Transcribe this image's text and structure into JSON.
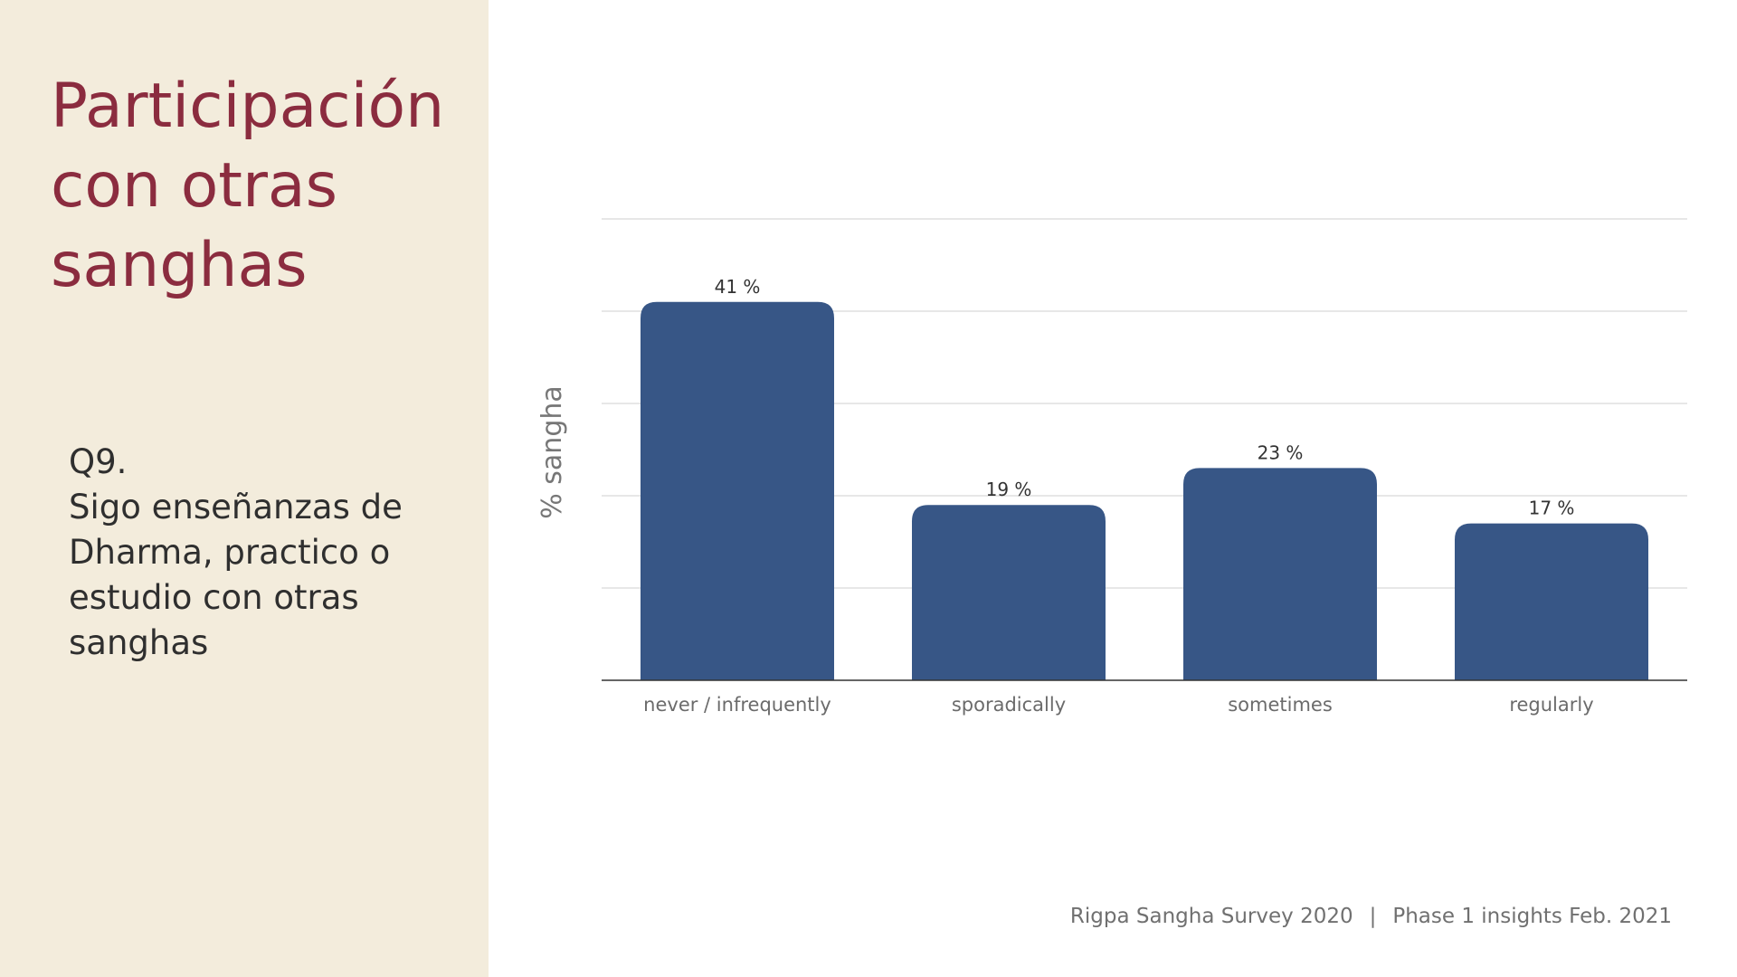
{
  "slide": {
    "title": "Participación con otras sanghas",
    "question_number": "Q9.",
    "question_text": "Sigo enseñanzas de\nDharma, practico o\nestudio con otras\nsanghas",
    "footer_left": "Rigpa Sangha Survey 2020",
    "footer_sep": "|",
    "footer_right": "Phase 1 insights Feb. 2021"
  },
  "colors": {
    "bar": "#375686",
    "title": "#8b2c3f",
    "panel": "#f3ecdc"
  },
  "chart_data": {
    "type": "bar",
    "categories": [
      "never / infrequently",
      "sporadically",
      "sometimes",
      "regularly"
    ],
    "values": [
      41,
      19,
      23,
      17
    ],
    "value_labels": [
      "41 %",
      "19 %",
      "23 %",
      "17 %"
    ],
    "ylabel": "% sangha",
    "xlabel": "",
    "ylim": [
      0,
      50
    ],
    "grid": true
  }
}
